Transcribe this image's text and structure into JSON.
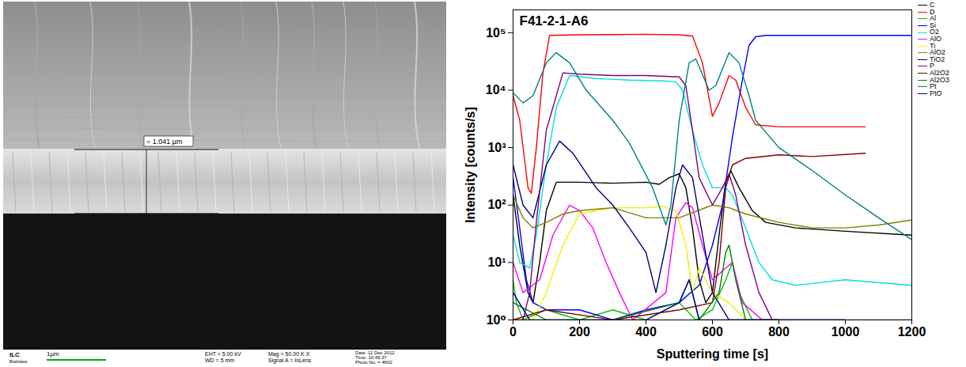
{
  "chart_data": {
    "type": "line",
    "title": "F41-2-1-A6",
    "x_label": "Sputtering time [s]",
    "y_label": "Intensity [counts/s]",
    "xlim": [
      0,
      1200
    ],
    "xticks": [
      0,
      200,
      400,
      600,
      800,
      1000,
      1200
    ],
    "ylim": [
      1,
      250000
    ],
    "yticks": [
      {
        "value": 1,
        "label": "10⁰"
      },
      {
        "value": 10,
        "label": "10¹"
      },
      {
        "value": 100,
        "label": "10²"
      },
      {
        "value": 1000,
        "label": "10³"
      },
      {
        "value": 10000,
        "label": "10⁴"
      },
      {
        "value": 100000,
        "label": "10⁵"
      }
    ],
    "log": "y",
    "grid": false,
    "legend": "top-right",
    "series": [
      {
        "name": "C",
        "color": "#000000",
        "x": [
          0,
          20,
          45,
          60,
          80,
          100,
          130,
          200,
          300,
          400,
          440,
          470,
          500,
          520,
          540,
          560,
          580,
          600,
          620,
          640,
          655,
          680,
          720,
          760,
          850,
          1000,
          1200
        ],
        "values": [
          150,
          20,
          3,
          2,
          10,
          80,
          250,
          250,
          240,
          250,
          230,
          300,
          350,
          200,
          40,
          5,
          2,
          3,
          30,
          250,
          400,
          200,
          80,
          50,
          40,
          35,
          30
        ]
      },
      {
        "name": "D",
        "color": "#ff0000",
        "x": [
          0,
          20,
          45,
          55,
          70,
          90,
          110,
          200,
          300,
          400,
          500,
          540,
          570,
          600,
          620,
          650,
          670,
          700,
          730,
          800,
          900,
          1060
        ],
        "values": [
          8000,
          3000,
          200,
          160,
          1000,
          20000,
          90000,
          92000,
          93000,
          94000,
          92000,
          88000,
          30000,
          3500,
          6000,
          18000,
          15000,
          5000,
          2500,
          2300,
          2300,
          2300
        ]
      },
      {
        "name": "Al",
        "color": "#00c000",
        "x": [
          0,
          10,
          30,
          100,
          200,
          300,
          400,
          500,
          550,
          600,
          640,
          660,
          680,
          720,
          800,
          1000,
          1200
        ],
        "values": [
          5,
          2,
          1,
          1.5,
          1,
          1.5,
          1,
          2,
          1,
          1.5,
          5,
          10,
          3,
          1,
          1,
          1,
          1
        ]
      },
      {
        "name": "Si",
        "color": "#0000ff",
        "x": [
          0,
          20,
          40,
          60,
          100,
          200,
          300,
          400,
          500,
          560,
          600,
          630,
          660,
          690,
          710,
          730,
          760,
          800,
          1000,
          1200
        ],
        "values": [
          300,
          40,
          5,
          2,
          1.5,
          1.5,
          1,
          1.5,
          2,
          4,
          20,
          100,
          1500,
          15000,
          60000,
          85000,
          90000,
          90000,
          90000,
          90000
        ]
      },
      {
        "name": "O2",
        "color": "#00e0e0",
        "x": [
          0,
          20,
          50,
          70,
          100,
          130,
          170,
          250,
          350,
          450,
          490,
          510,
          540,
          570,
          600,
          640,
          660,
          700,
          740,
          780,
          850,
          1000,
          1200
        ],
        "values": [
          30,
          10,
          8,
          30,
          500,
          5000,
          18000,
          16000,
          15000,
          14500,
          14000,
          10000,
          2000,
          500,
          200,
          200,
          150,
          40,
          10,
          5,
          4,
          5,
          4
        ]
      },
      {
        "name": "AlO",
        "color": "#ff00ff",
        "x": [
          0,
          30,
          80,
          120,
          170,
          200,
          240,
          280,
          320,
          360,
          460,
          490,
          520,
          540,
          570,
          600,
          640,
          660,
          690,
          750,
          1000
        ],
        "values": [
          10,
          3,
          5,
          30,
          100,
          80,
          40,
          10,
          3,
          1,
          3,
          60,
          110,
          90,
          20,
          5,
          8,
          10,
          2,
          1,
          1
        ]
      },
      {
        "name": "Ti",
        "color": "#f0f000",
        "x": [
          0,
          60,
          100,
          150,
          200,
          250,
          300,
          400,
          450,
          490,
          520,
          540,
          560,
          600,
          650,
          700
        ],
        "values": [
          1,
          1,
          3,
          20,
          70,
          80,
          90,
          90,
          95,
          80,
          20,
          3,
          8,
          3,
          2,
          1
        ]
      },
      {
        "name": "AlO2",
        "color": "#808000",
        "x": [
          0,
          30,
          60,
          100,
          150,
          200,
          300,
          400,
          500,
          600,
          650,
          700,
          800,
          900,
          1000,
          1100,
          1200
        ],
        "values": [
          150,
          60,
          40,
          50,
          70,
          80,
          90,
          60,
          60,
          100,
          90,
          70,
          50,
          40,
          40,
          45,
          55
        ]
      },
      {
        "name": "TiO2",
        "color": "#000080",
        "x": [
          0,
          30,
          60,
          100,
          140,
          180,
          250,
          300,
          350,
          400,
          430,
          460,
          490,
          510,
          540,
          570,
          600,
          650,
          800
        ],
        "values": [
          500,
          100,
          60,
          500,
          1300,
          800,
          200,
          100,
          40,
          15,
          3,
          20,
          200,
          500,
          300,
          30,
          3,
          1,
          1
        ]
      },
      {
        "name": "P",
        "color": "#800080",
        "x": [
          0,
          30,
          50,
          70,
          100,
          150,
          200,
          300,
          400,
          500,
          520,
          540,
          560,
          600,
          630,
          650,
          670,
          700,
          740,
          780
        ],
        "values": [
          1,
          1,
          3,
          50,
          2000,
          20000,
          19000,
          18000,
          18000,
          17000,
          12000,
          2000,
          300,
          100,
          200,
          350,
          150,
          20,
          3,
          1
        ]
      },
      {
        "name": "Al2O2",
        "color": "#800000",
        "x": [
          0,
          100,
          300,
          500,
          600,
          620,
          640,
          660,
          700,
          800,
          900,
          1060
        ],
        "values": [
          1,
          1.5,
          1,
          1.5,
          2,
          10,
          200,
          500,
          650,
          750,
          700,
          800
        ]
      },
      {
        "name": "Al2O3",
        "color": "#008000",
        "x": [
          0,
          100,
          300,
          500,
          530,
          560,
          620,
          640,
          650,
          670,
          700,
          800
        ],
        "values": [
          2,
          1,
          1,
          2,
          5,
          1,
          3,
          15,
          20,
          5,
          1,
          1
        ]
      },
      {
        "name": "Pt",
        "color": "#008080",
        "x": [
          0,
          30,
          60,
          100,
          130,
          170,
          220,
          300,
          350,
          420,
          460,
          475,
          500,
          530,
          550,
          590,
          610,
          650,
          680,
          710,
          730,
          800,
          900,
          1000,
          1100,
          1200
        ],
        "values": [
          9000,
          6000,
          8000,
          30000,
          45000,
          30000,
          10000,
          3000,
          1200,
          200,
          45,
          100,
          3000,
          30000,
          35000,
          10000,
          12000,
          45000,
          30000,
          8000,
          3000,
          1000,
          400,
          150,
          60,
          25
        ]
      },
      {
        "name": "PtO",
        "color": "#0000a0",
        "x": [
          0,
          50,
          200,
          400,
          500,
          530,
          560,
          700,
          1000
        ],
        "values": [
          3,
          1,
          1,
          1,
          2,
          5,
          1,
          1,
          1
        ]
      }
    ]
  },
  "sem_image": {
    "measurement": "= 1.041 µm",
    "scale_bar": "1µm",
    "logo": [
      "ILC",
      "Bratislava"
    ],
    "info": [
      [
        "EHT = 5.00 kV",
        "WD = 5 mm"
      ],
      [
        "Mag = 50.00 K X",
        "Signal A = InLens"
      ],
      [
        "Date :11 Dec 2012",
        "Time :10:49:37",
        "Photo No. = 4602"
      ]
    ]
  }
}
